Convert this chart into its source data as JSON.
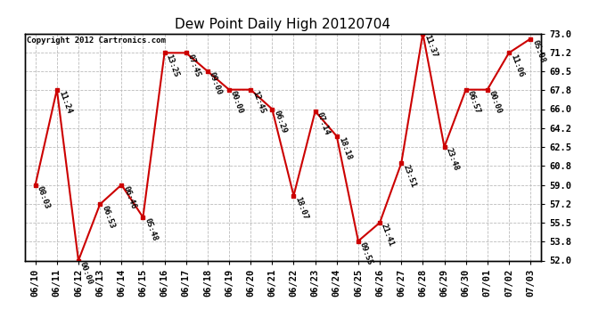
{
  "title": "Dew Point Daily High 20120704",
  "copyright": "Copyright 2012 Cartronics.com",
  "dates": [
    "06/10",
    "06/11",
    "06/12",
    "06/13",
    "06/14",
    "06/15",
    "06/16",
    "06/17",
    "06/18",
    "06/19",
    "06/20",
    "06/21",
    "06/22",
    "06/23",
    "06/24",
    "06/25",
    "06/26",
    "06/27",
    "06/28",
    "06/29",
    "06/30",
    "07/01",
    "07/02",
    "07/03"
  ],
  "values": [
    59.0,
    67.8,
    52.0,
    57.2,
    59.0,
    56.0,
    71.2,
    71.2,
    69.5,
    67.8,
    67.8,
    66.0,
    58.0,
    65.8,
    63.5,
    53.8,
    55.5,
    61.0,
    73.0,
    62.5,
    67.8,
    67.8,
    71.2,
    72.5
  ],
  "labels": [
    "08:03",
    "11:24",
    "00:00",
    "06:53",
    "06:46",
    "05:48",
    "13:25",
    "07:45",
    "09:00",
    "00:00",
    "12:45",
    "06:29",
    "18:07",
    "07:14",
    "18:18",
    "09:55",
    "21:41",
    "23:51",
    "11:37",
    "23:48",
    "06:57",
    "00:00",
    "11:06",
    "05:08"
  ],
  "ylim": [
    52.0,
    73.0
  ],
  "yticks": [
    52.0,
    53.8,
    55.5,
    57.2,
    59.0,
    60.8,
    62.5,
    64.2,
    66.0,
    67.8,
    69.5,
    71.2,
    73.0
  ],
  "line_color": "#cc0000",
  "marker_color": "#cc0000",
  "bg_color": "#ffffff",
  "grid_color": "#bbbbbb",
  "title_fontsize": 11,
  "label_fontsize": 6.5,
  "tick_fontsize": 7.5,
  "copyright_fontsize": 6.5
}
